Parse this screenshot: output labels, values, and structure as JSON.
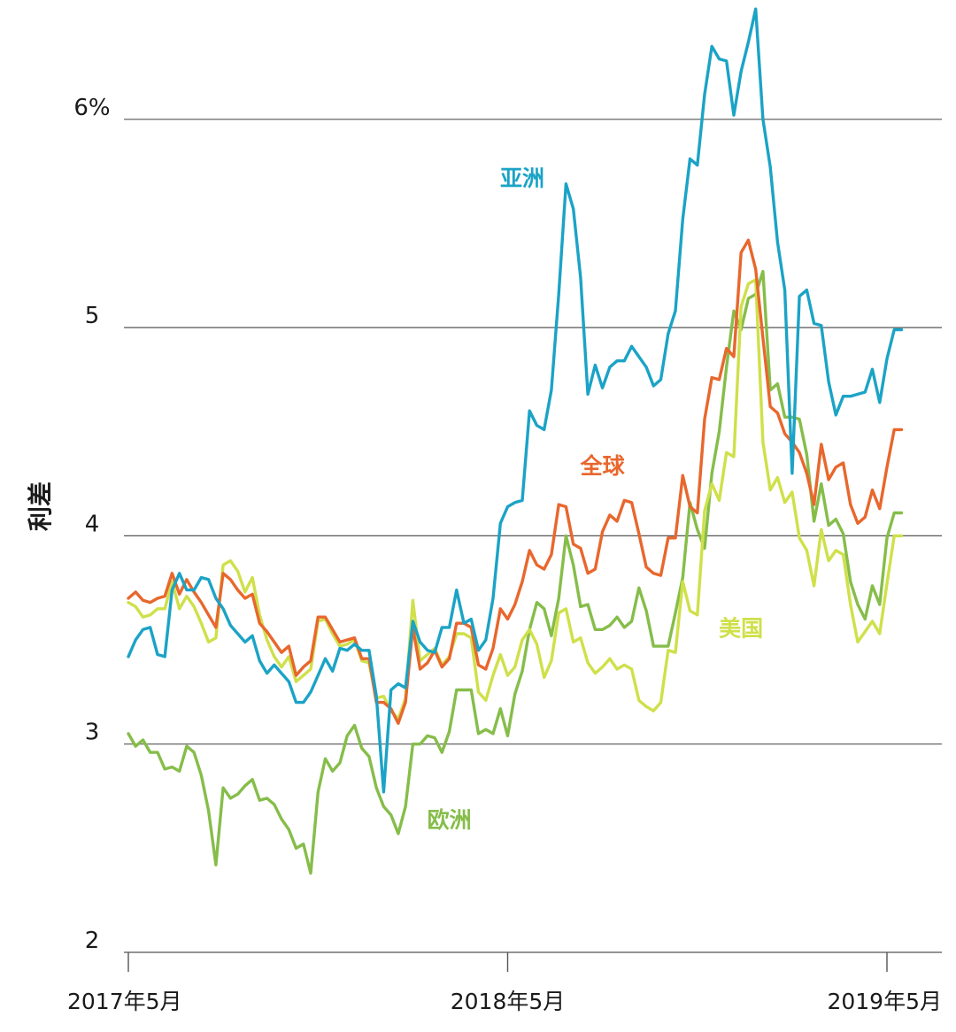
{
  "chart_data": {
    "type": "line",
    "title": "",
    "xlabel": "",
    "ylabel": "利差",
    "ylim": [
      2,
      6.5
    ],
    "xlim": [
      0,
      108
    ],
    "grid": true,
    "y_ticks": [
      {
        "value": 2,
        "label": "2"
      },
      {
        "value": 3,
        "label": "3"
      },
      {
        "value": 4,
        "label": "4"
      },
      {
        "value": 5,
        "label": "5"
      },
      {
        "value": 6,
        "label": "6%"
      }
    ],
    "x_ticks": [
      {
        "value": 0,
        "label": "2017年5月"
      },
      {
        "value": 52,
        "label": "2018年5月"
      },
      {
        "value": 104,
        "label": "2019年5月"
      }
    ],
    "colors": {
      "asia": "#1ba3c6",
      "global": "#e8672d",
      "us": "#cfe04a",
      "europe": "#86bd4a",
      "grid": "#555555",
      "text": "#1a1a1a"
    },
    "series": [
      {
        "name": "亚洲",
        "key": "asia",
        "x": [
          0,
          1,
          2,
          3,
          4,
          5,
          6,
          7,
          8,
          9,
          10,
          11,
          12,
          13,
          14,
          15,
          16,
          17,
          18,
          19,
          20,
          21,
          22,
          23,
          24,
          25,
          26,
          27,
          28,
          29,
          30,
          31,
          32,
          33,
          34,
          35,
          36,
          37,
          38,
          39,
          40,
          41,
          42,
          43,
          44,
          45,
          46,
          47,
          48,
          49,
          50,
          51,
          52,
          53,
          54,
          55,
          56,
          57,
          58,
          59,
          60,
          61,
          62,
          63,
          64,
          65,
          66,
          67,
          68,
          69,
          70,
          71,
          72,
          73,
          74,
          75,
          76,
          77,
          78,
          79,
          80,
          81,
          82,
          83,
          84,
          85,
          86,
          87,
          88,
          89,
          90,
          91,
          92,
          93,
          94,
          95,
          96,
          97,
          98,
          99,
          100,
          101,
          102,
          103,
          104,
          105,
          106
        ],
        "values": [
          3.42,
          3.5,
          3.55,
          3.56,
          3.43,
          3.42,
          3.74,
          3.82,
          3.74,
          3.74,
          3.8,
          3.79,
          3.7,
          3.65,
          3.57,
          3.53,
          3.49,
          3.52,
          3.4,
          3.34,
          3.38,
          3.34,
          3.3,
          3.2,
          3.2,
          3.25,
          3.33,
          3.41,
          3.35,
          3.46,
          3.45,
          3.48,
          3.45,
          3.45,
          3.23,
          2.77,
          3.26,
          3.29,
          3.27,
          3.59,
          3.49,
          3.45,
          3.44,
          3.56,
          3.56,
          3.74,
          3.58,
          3.6,
          3.45,
          3.5,
          3.7,
          4.06,
          4.14,
          4.16,
          4.17,
          4.6,
          4.53,
          4.51,
          4.7,
          5.16,
          5.69,
          5.57,
          5.24,
          4.68,
          4.82,
          4.71,
          4.81,
          4.84,
          4.84,
          4.91,
          4.86,
          4.81,
          4.72,
          4.75,
          4.97,
          5.08,
          5.52,
          5.81,
          5.78,
          6.12,
          6.35,
          6.29,
          6.28,
          6.02,
          6.23,
          6.37,
          6.53,
          6.0,
          5.77,
          5.41,
          5.18,
          4.3,
          5.15,
          5.18,
          5.02,
          5.01,
          4.74,
          4.58,
          4.67,
          4.67,
          4.68,
          4.69,
          4.8,
          4.64,
          4.85,
          4.99,
          4.99
        ]
      },
      {
        "name": "全球",
        "key": "global",
        "x": [
          0,
          1,
          2,
          3,
          4,
          5,
          6,
          7,
          8,
          9,
          10,
          11,
          12,
          13,
          14,
          15,
          16,
          17,
          18,
          19,
          20,
          21,
          22,
          23,
          24,
          25,
          26,
          27,
          28,
          29,
          30,
          31,
          32,
          33,
          34,
          35,
          36,
          37,
          38,
          39,
          40,
          41,
          42,
          43,
          44,
          45,
          46,
          47,
          48,
          49,
          50,
          51,
          52,
          53,
          54,
          55,
          56,
          57,
          58,
          59,
          60,
          61,
          62,
          63,
          64,
          65,
          66,
          67,
          68,
          69,
          70,
          71,
          72,
          73,
          74,
          75,
          76,
          77,
          78,
          79,
          80,
          81,
          82,
          83,
          84,
          85,
          86,
          87,
          88,
          89,
          90,
          91,
          92,
          93,
          94,
          95,
          96,
          97,
          98,
          99,
          100,
          101,
          102,
          103,
          104,
          105,
          106
        ],
        "values": [
          3.7,
          3.73,
          3.69,
          3.68,
          3.7,
          3.71,
          3.82,
          3.72,
          3.79,
          3.73,
          3.68,
          3.62,
          3.56,
          3.82,
          3.79,
          3.74,
          3.7,
          3.72,
          3.58,
          3.54,
          3.49,
          3.44,
          3.47,
          3.33,
          3.37,
          3.4,
          3.61,
          3.61,
          3.55,
          3.49,
          3.5,
          3.51,
          3.41,
          3.41,
          3.2,
          3.2,
          3.17,
          3.1,
          3.2,
          3.56,
          3.36,
          3.39,
          3.45,
          3.37,
          3.41,
          3.58,
          3.58,
          3.56,
          3.38,
          3.36,
          3.46,
          3.65,
          3.6,
          3.67,
          3.78,
          3.93,
          3.86,
          3.84,
          3.91,
          4.15,
          4.14,
          3.96,
          3.94,
          3.82,
          3.84,
          4.02,
          4.1,
          4.07,
          4.17,
          4.16,
          4.01,
          3.85,
          3.82,
          3.81,
          3.99,
          3.99,
          4.29,
          4.14,
          4.11,
          4.56,
          4.76,
          4.75,
          4.9,
          4.86,
          5.36,
          5.42,
          5.28,
          4.95,
          4.62,
          4.59,
          4.49,
          4.45,
          4.4,
          4.3,
          4.15,
          4.44,
          4.27,
          4.33,
          4.35,
          4.15,
          4.06,
          4.09,
          4.22,
          4.13,
          4.33,
          4.51,
          4.51
        ]
      },
      {
        "name": "美国",
        "key": "us",
        "x": [
          0,
          1,
          2,
          3,
          4,
          5,
          6,
          7,
          8,
          9,
          10,
          11,
          12,
          13,
          14,
          15,
          16,
          17,
          18,
          19,
          20,
          21,
          22,
          23,
          24,
          25,
          26,
          27,
          28,
          29,
          30,
          31,
          32,
          33,
          34,
          35,
          36,
          37,
          38,
          39,
          40,
          41,
          42,
          43,
          44,
          45,
          46,
          47,
          48,
          49,
          50,
          51,
          52,
          53,
          54,
          55,
          56,
          57,
          58,
          59,
          60,
          61,
          62,
          63,
          64,
          65,
          66,
          67,
          68,
          69,
          70,
          71,
          72,
          73,
          74,
          75,
          76,
          77,
          78,
          79,
          80,
          81,
          82,
          83,
          84,
          85,
          86,
          87,
          88,
          89,
          90,
          91,
          92,
          93,
          94,
          95,
          96,
          97,
          98,
          99,
          100,
          101,
          102,
          103,
          104,
          105,
          106
        ],
        "values": [
          3.68,
          3.66,
          3.61,
          3.62,
          3.65,
          3.65,
          3.78,
          3.65,
          3.71,
          3.66,
          3.58,
          3.49,
          3.51,
          3.86,
          3.88,
          3.83,
          3.73,
          3.8,
          3.62,
          3.5,
          3.42,
          3.37,
          3.42,
          3.3,
          3.33,
          3.36,
          3.59,
          3.6,
          3.53,
          3.47,
          3.48,
          3.5,
          3.4,
          3.39,
          3.22,
          3.23,
          3.16,
          3.12,
          3.22,
          3.69,
          3.4,
          3.43,
          3.46,
          3.38,
          3.42,
          3.53,
          3.53,
          3.51,
          3.25,
          3.21,
          3.33,
          3.43,
          3.33,
          3.37,
          3.5,
          3.55,
          3.48,
          3.32,
          3.4,
          3.63,
          3.65,
          3.49,
          3.51,
          3.39,
          3.34,
          3.37,
          3.41,
          3.36,
          3.38,
          3.36,
          3.21,
          3.18,
          3.16,
          3.2,
          3.45,
          3.44,
          3.78,
          3.64,
          3.62,
          4.12,
          4.25,
          4.17,
          4.4,
          4.38,
          5.1,
          5.21,
          5.23,
          4.45,
          4.22,
          4.28,
          4.16,
          4.21,
          3.99,
          3.93,
          3.76,
          4.03,
          3.88,
          3.93,
          3.91,
          3.67,
          3.49,
          3.54,
          3.59,
          3.53,
          3.77,
          4.0,
          4.0
        ]
      },
      {
        "name": "欧洲",
        "key": "europe",
        "x": [
          0,
          1,
          2,
          3,
          4,
          5,
          6,
          7,
          8,
          9,
          10,
          11,
          12,
          13,
          14,
          15,
          16,
          17,
          18,
          19,
          20,
          21,
          22,
          23,
          24,
          25,
          26,
          27,
          28,
          29,
          30,
          31,
          32,
          33,
          34,
          35,
          36,
          37,
          38,
          39,
          40,
          41,
          42,
          43,
          44,
          45,
          46,
          47,
          48,
          49,
          50,
          51,
          52,
          53,
          54,
          55,
          56,
          57,
          58,
          59,
          60,
          61,
          62,
          63,
          64,
          65,
          66,
          67,
          68,
          69,
          70,
          71,
          72,
          73,
          74,
          75,
          76,
          77,
          78,
          79,
          80,
          81,
          82,
          83,
          84,
          85,
          86,
          87,
          88,
          89,
          90,
          91,
          92,
          93,
          94,
          95,
          96,
          97,
          98,
          99,
          100,
          101,
          102,
          103,
          104,
          105,
          106
        ],
        "values": [
          3.05,
          2.99,
          3.02,
          2.96,
          2.96,
          2.88,
          2.89,
          2.87,
          2.99,
          2.96,
          2.85,
          2.68,
          2.42,
          2.79,
          2.74,
          2.76,
          2.8,
          2.83,
          2.73,
          2.74,
          2.71,
          2.64,
          2.59,
          2.5,
          2.52,
          2.38,
          2.77,
          2.93,
          2.87,
          2.91,
          3.04,
          3.09,
          2.98,
          2.94,
          2.79,
          2.7,
          2.66,
          2.57,
          2.7,
          3.0,
          3.0,
          3.04,
          3.03,
          2.96,
          3.06,
          3.26,
          3.26,
          3.26,
          3.05,
          3.07,
          3.05,
          3.17,
          3.04,
          3.24,
          3.35,
          3.55,
          3.68,
          3.65,
          3.52,
          3.7,
          4.0,
          3.86,
          3.66,
          3.67,
          3.55,
          3.55,
          3.57,
          3.61,
          3.56,
          3.59,
          3.75,
          3.64,
          3.47,
          3.47,
          3.47,
          3.63,
          3.8,
          4.16,
          4.03,
          3.94,
          4.3,
          4.5,
          4.81,
          5.08,
          4.99,
          5.14,
          5.16,
          5.27,
          4.7,
          4.73,
          4.57,
          4.57,
          4.56,
          4.39,
          4.07,
          4.25,
          4.05,
          4.08,
          4.01,
          3.78,
          3.67,
          3.6,
          3.76,
          3.67,
          3.99,
          4.11,
          4.11
        ]
      }
    ],
    "annotations": [
      {
        "text": "亚洲",
        "series": "asia",
        "x": 54,
        "y": 5.68
      },
      {
        "text": "全球",
        "series": "global",
        "x": 65,
        "y": 4.3
      },
      {
        "text": "美国",
        "series": "us",
        "x": 84,
        "y": 3.52
      },
      {
        "text": "欧洲",
        "series": "europe",
        "x": 44,
        "y": 2.6
      }
    ]
  }
}
